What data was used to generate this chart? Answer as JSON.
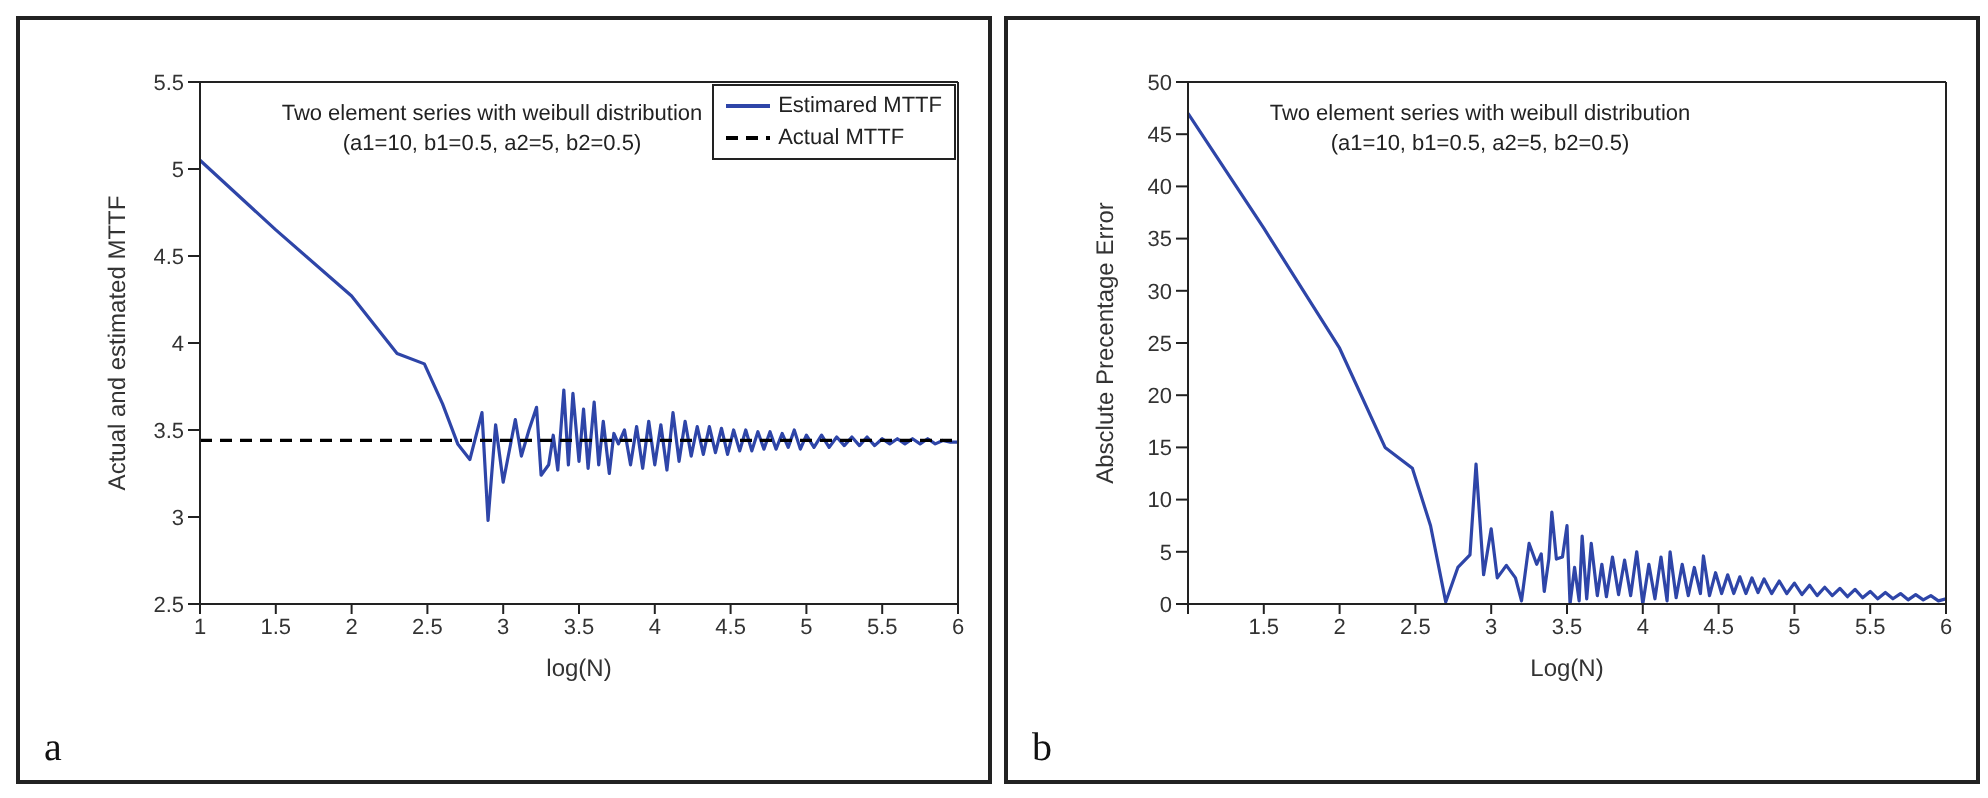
{
  "chart_data": [
    {
      "type": "line",
      "title": "Two element series with weibull distribution",
      "subtitle": "(a1=10, b1=0.5, a2=5, b2=0.5)",
      "xlabel": "log(N)",
      "ylabel": "Actual and estimated MTTF",
      "annotations": [
        "a"
      ],
      "xlim": [
        1,
        6
      ],
      "xticks": [
        1,
        1.5,
        2,
        2.5,
        3,
        3.5,
        4,
        4.5,
        5,
        5.5,
        6
      ],
      "ylim": [
        2.5,
        5.5
      ],
      "yticks": [
        2.5,
        3,
        3.5,
        4,
        4.5,
        5,
        5.5
      ],
      "legend": "top right",
      "series": [
        {
          "name": "Estimared MTTF",
          "color": "#2e45a8",
          "line_style": "solid",
          "x": [
            1,
            1.5,
            2,
            2.3,
            2.48,
            2.6,
            2.7,
            2.78,
            2.86,
            2.9,
            2.95,
            3.0,
            3.08,
            3.12,
            3.17,
            3.22,
            3.25,
            3.3,
            3.33,
            3.36,
            3.38,
            3.4,
            3.43,
            3.46,
            3.5,
            3.53,
            3.56,
            3.6,
            3.63,
            3.66,
            3.7,
            3.73,
            3.76,
            3.8,
            3.84,
            3.88,
            3.92,
            3.96,
            4.0,
            4.04,
            4.08,
            4.12,
            4.16,
            4.2,
            4.24,
            4.28,
            4.32,
            4.36,
            4.4,
            4.44,
            4.48,
            4.52,
            4.56,
            4.6,
            4.64,
            4.68,
            4.72,
            4.76,
            4.8,
            4.84,
            4.88,
            4.92,
            4.96,
            5.0,
            5.05,
            5.1,
            5.15,
            5.2,
            5.25,
            5.3,
            5.35,
            5.4,
            5.45,
            5.5,
            5.55,
            5.6,
            5.65,
            5.7,
            5.75,
            5.8,
            5.85,
            5.9,
            5.95,
            6.0
          ],
          "values": [
            5.05,
            4.65,
            4.27,
            3.94,
            3.88,
            3.65,
            3.42,
            3.33,
            3.6,
            2.98,
            3.53,
            3.2,
            3.56,
            3.35,
            3.5,
            3.63,
            3.24,
            3.3,
            3.47,
            3.27,
            3.5,
            3.73,
            3.3,
            3.71,
            3.32,
            3.62,
            3.28,
            3.66,
            3.3,
            3.55,
            3.25,
            3.48,
            3.42,
            3.5,
            3.3,
            3.52,
            3.28,
            3.55,
            3.3,
            3.53,
            3.27,
            3.6,
            3.32,
            3.55,
            3.35,
            3.52,
            3.36,
            3.52,
            3.37,
            3.51,
            3.36,
            3.5,
            3.38,
            3.5,
            3.38,
            3.49,
            3.39,
            3.49,
            3.39,
            3.48,
            3.4,
            3.5,
            3.39,
            3.47,
            3.4,
            3.47,
            3.4,
            3.46,
            3.41,
            3.46,
            3.41,
            3.46,
            3.41,
            3.45,
            3.42,
            3.45,
            3.42,
            3.45,
            3.42,
            3.45,
            3.42,
            3.44,
            3.43,
            3.43
          ]
        },
        {
          "name": "Actual MTTF",
          "color": "#000000",
          "line_style": "dashed",
          "x": [
            1,
            6
          ],
          "values": [
            3.44,
            3.44
          ]
        }
      ]
    },
    {
      "type": "line",
      "title": "Two element series with weibull distribution",
      "subtitle": "(a1=10, b1=0.5, a2=5, b2=0.5)",
      "xlabel": "Log(N)",
      "ylabel": "Absclute Precentage Error",
      "annotations": [
        "b"
      ],
      "xlim": [
        1,
        6
      ],
      "xticks": [
        {
          "value": 1,
          "label": null
        },
        1.5,
        2,
        2.5,
        3,
        3.5,
        4,
        4.5,
        5,
        5.5,
        6
      ],
      "ylim": [
        0,
        50
      ],
      "yticks": [
        0,
        5,
        10,
        15,
        20,
        25,
        30,
        35,
        40,
        45,
        50
      ],
      "legend": false,
      "series": [
        {
          "color": "#2e45a8",
          "line_style": "solid",
          "x": [
            1,
            1.5,
            2,
            2.3,
            2.48,
            2.6,
            2.7,
            2.78,
            2.86,
            2.9,
            2.95,
            3.0,
            3.04,
            3.1,
            3.16,
            3.2,
            3.25,
            3.3,
            3.33,
            3.35,
            3.38,
            3.4,
            3.43,
            3.47,
            3.5,
            3.52,
            3.55,
            3.58,
            3.6,
            3.63,
            3.66,
            3.7,
            3.73,
            3.76,
            3.8,
            3.84,
            3.88,
            3.92,
            3.96,
            4.0,
            4.04,
            4.08,
            4.12,
            4.16,
            4.18,
            4.22,
            4.26,
            4.3,
            4.34,
            4.38,
            4.4,
            4.44,
            4.48,
            4.52,
            4.56,
            4.6,
            4.64,
            4.68,
            4.72,
            4.76,
            4.8,
            4.85,
            4.9,
            4.95,
            5.0,
            5.05,
            5.1,
            5.15,
            5.2,
            5.25,
            5.3,
            5.35,
            5.4,
            5.45,
            5.5,
            5.55,
            5.6,
            5.65,
            5.7,
            5.75,
            5.8,
            5.85,
            5.9,
            5.95,
            6.0
          ],
          "values": [
            47,
            36,
            24.5,
            15,
            13,
            7.5,
            0.2,
            3.5,
            4.7,
            13.4,
            2.8,
            7.2,
            2.5,
            3.7,
            2.5,
            0.3,
            5.8,
            3.8,
            4.8,
            1.2,
            4.3,
            8.8,
            4.3,
            4.5,
            7.5,
            0,
            3.5,
            0.3,
            6.5,
            0.5,
            5.8,
            0.8,
            3.8,
            0.7,
            4.5,
            0.9,
            4.2,
            0.8,
            5,
            0,
            3.8,
            0.5,
            4.5,
            0.3,
            5,
            0.6,
            3.8,
            0.8,
            3.5,
            1,
            4.6,
            0.8,
            3,
            1,
            2.8,
            1,
            2.6,
            1,
            2.5,
            1.1,
            2.4,
            1,
            2.2,
            1,
            2,
            0.9,
            1.8,
            0.8,
            1.6,
            0.8,
            1.5,
            0.7,
            1.4,
            0.6,
            1.2,
            0.5,
            1.1,
            0.5,
            1,
            0.4,
            0.9,
            0.4,
            0.8,
            0.3,
            0.5
          ]
        }
      ]
    }
  ]
}
